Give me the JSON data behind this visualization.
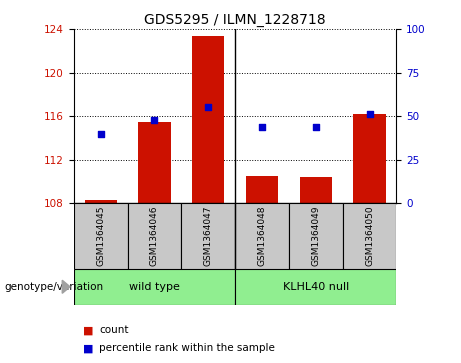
{
  "title": "GDS5295 / ILMN_1228718",
  "samples": [
    "GSM1364045",
    "GSM1364046",
    "GSM1364047",
    "GSM1364048",
    "GSM1364049",
    "GSM1364050"
  ],
  "count_values": [
    108.3,
    115.5,
    123.4,
    110.5,
    110.4,
    116.2
  ],
  "percentile_values": [
    40,
    48,
    55,
    44,
    44,
    51
  ],
  "ylim_left": [
    108,
    124
  ],
  "ylim_right": [
    0,
    100
  ],
  "yticks_left": [
    108,
    112,
    116,
    120,
    124
  ],
  "yticks_right": [
    0,
    25,
    50,
    75,
    100
  ],
  "bar_color": "#CC1100",
  "dot_color": "#0000CC",
  "bar_bottom": 108,
  "label_color_left": "#CC1100",
  "label_color_right": "#0000CC",
  "legend_items": [
    {
      "label": "count",
      "color": "#CC1100"
    },
    {
      "label": "percentile rank within the sample",
      "color": "#0000CC"
    }
  ],
  "genotype_label": "genotype/variation",
  "group_labels": [
    "wild type",
    "KLHL40 null"
  ],
  "group_color": "#90EE90",
  "sample_box_color": "#C8C8C8",
  "separator_after": 2
}
